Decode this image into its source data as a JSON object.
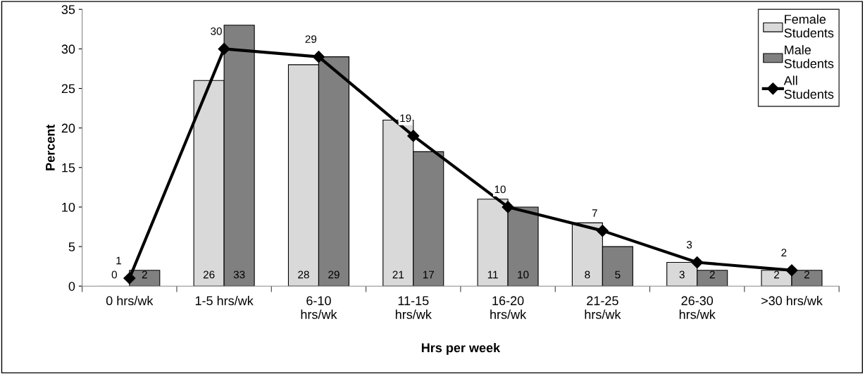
{
  "chart_data": {
    "type": "bar",
    "xlabel": "Hrs per week",
    "ylabel": "Percent",
    "categories": [
      "0 hrs/wk",
      "1-5 hrs/wk",
      "6-10\nhrs/wk",
      "11-15\nhrs/wk",
      "16-20\nhrs/wk",
      "21-25\nhrs/wk",
      "26-30\nhrs/wk",
      ">30 hrs/wk"
    ],
    "series": [
      {
        "name": "Female\nStudents",
        "color": "#d9d9d9",
        "values": [
          0,
          26,
          28,
          21,
          11,
          8,
          3,
          2
        ]
      },
      {
        "name": "Male\nStudents",
        "color": "#808080",
        "values": [
          2,
          33,
          29,
          17,
          10,
          5,
          2,
          2
        ]
      },
      {
        "name": "All\nStudents",
        "type": "line",
        "color": "#000000",
        "marker": "diamond",
        "line_style": "solid",
        "values": [
          1,
          30,
          29,
          19,
          10,
          7,
          3,
          2
        ]
      }
    ],
    "ylim": [
      0,
      35
    ],
    "yticks": [
      0,
      5,
      10,
      15,
      20,
      25,
      30,
      35
    ],
    "grid": false,
    "legend": "top right",
    "data_labels": true
  }
}
